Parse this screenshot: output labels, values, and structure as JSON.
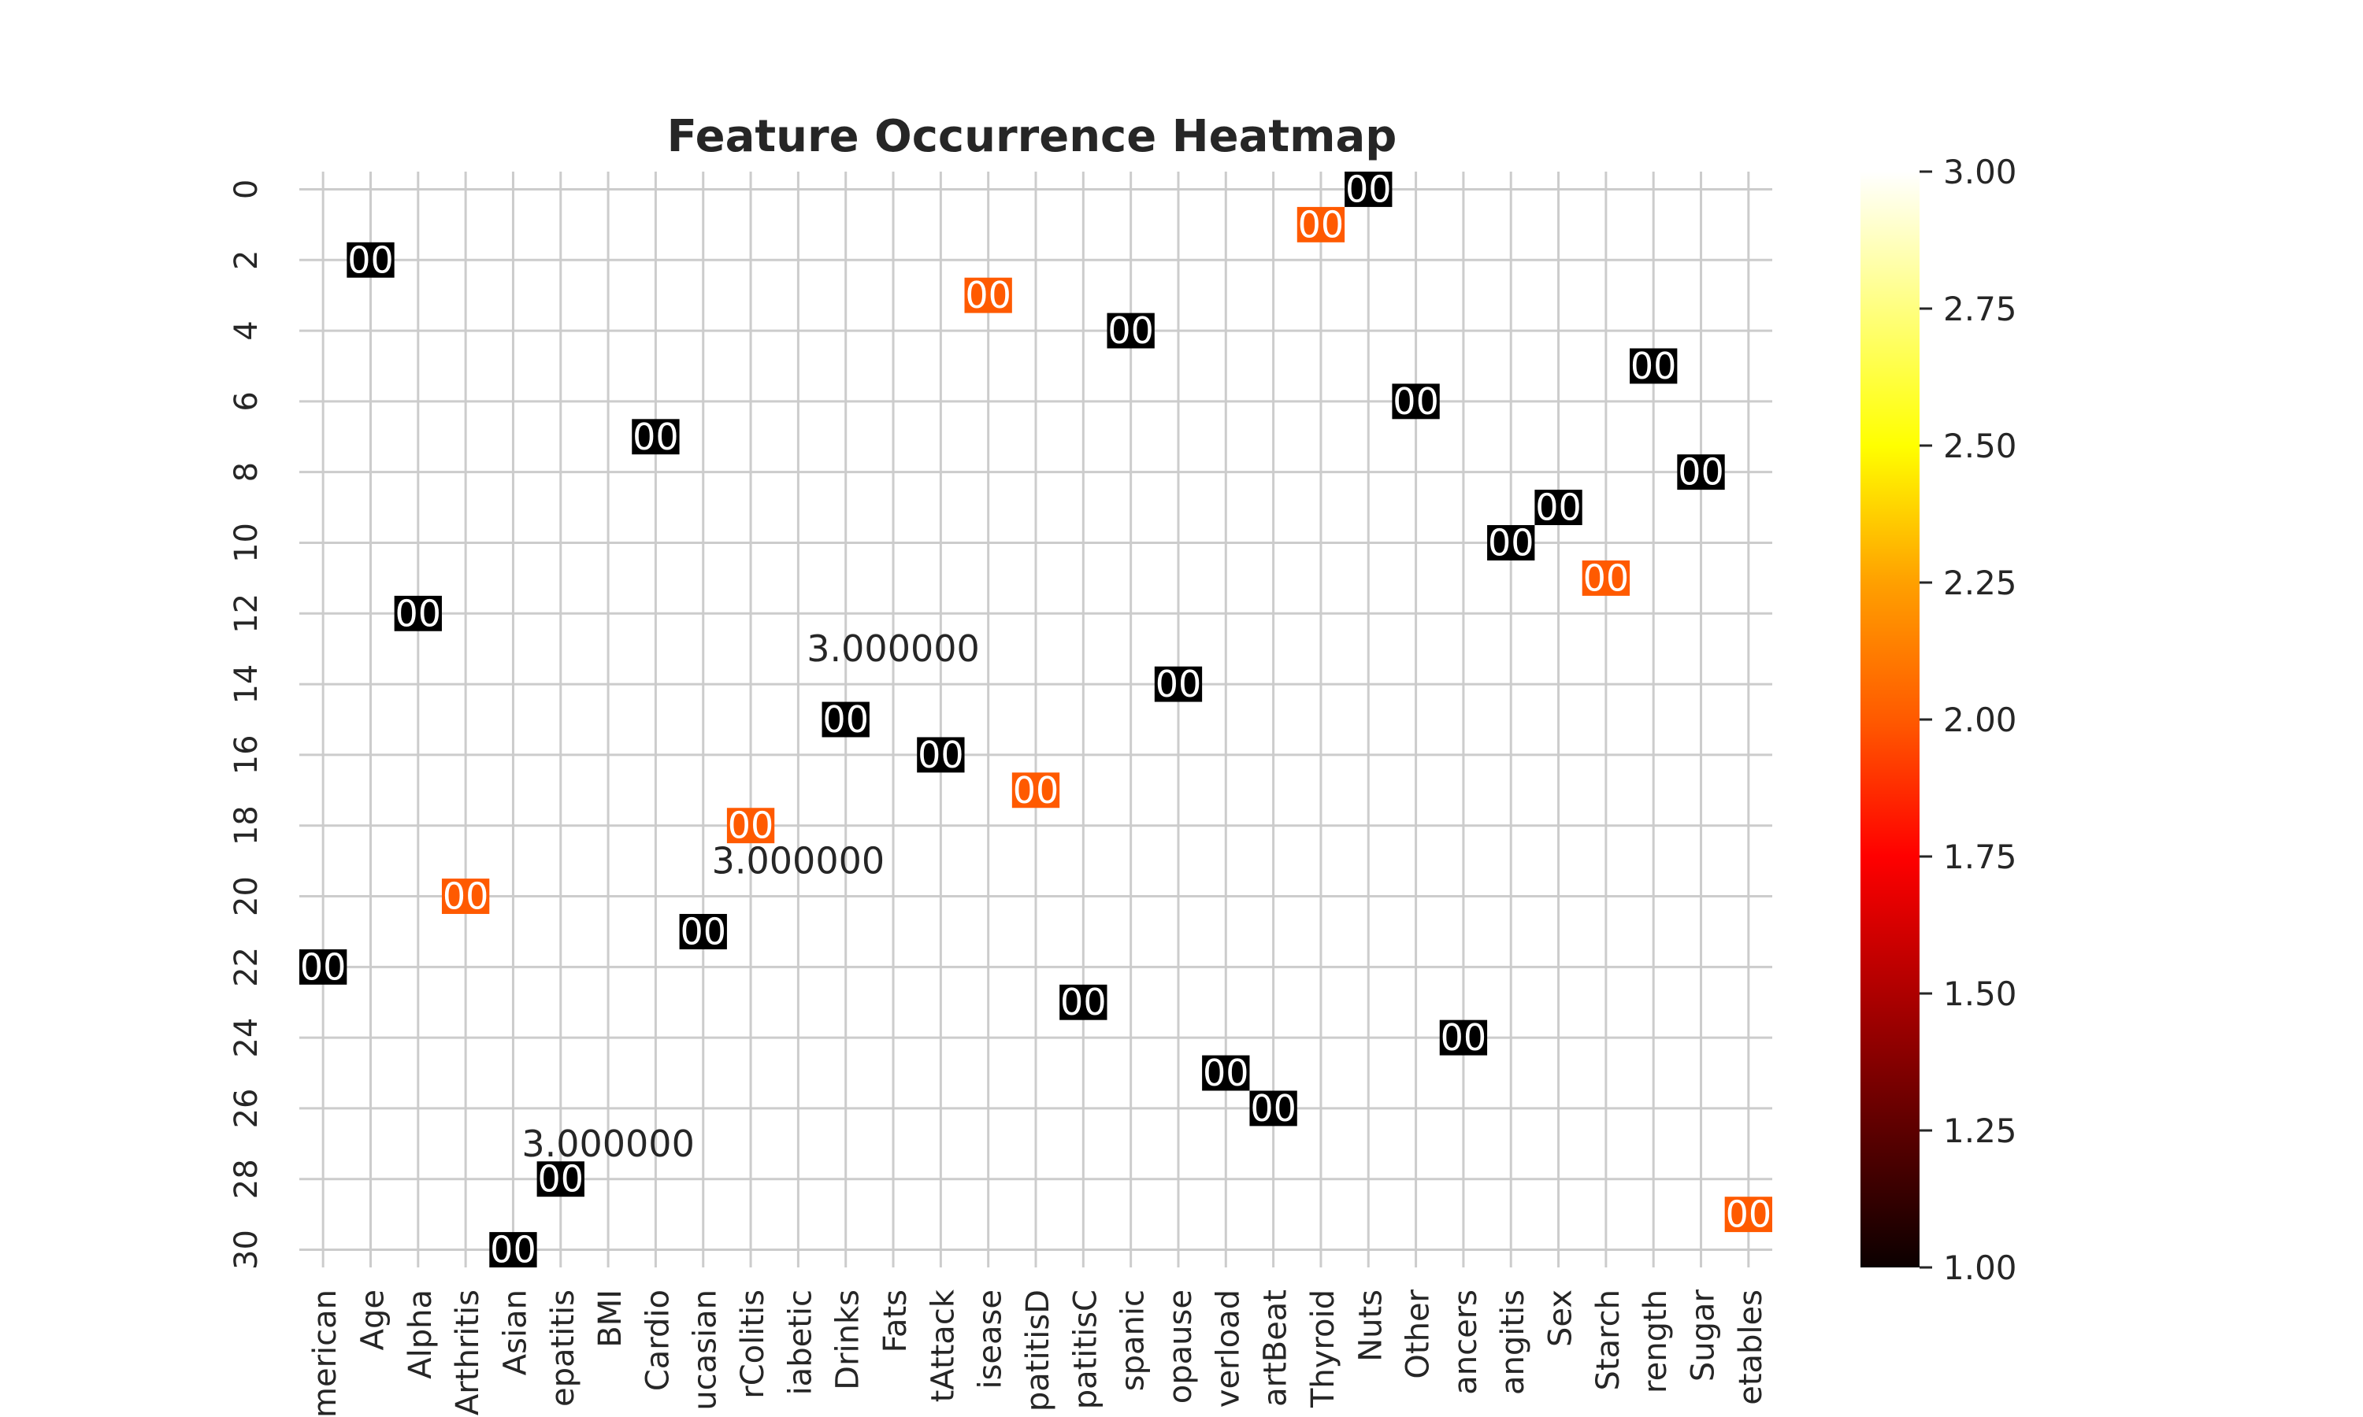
{
  "chart_data": {
    "type": "heatmap",
    "title": "Feature Occurrence Heatmap",
    "xlabel": "",
    "ylabel": "",
    "x_tick_labels": [
      "merican",
      "Age",
      "Alpha",
      "Arthritis",
      "Asian",
      "epatitis",
      "BMI",
      "Cardio",
      "ucasian",
      "rColitis",
      "iabetic",
      "Drinks",
      "Fats",
      "tAttack",
      "isease",
      "patitisD",
      "patitisC",
      "spanic",
      "opause",
      "verload",
      "artBeat",
      "Thyroid",
      "Nuts",
      "Other",
      "ancers",
      "angitis",
      "Sex",
      "Starch",
      "rength",
      "Sugar",
      "etables"
    ],
    "y_tick_labels": [
      "0",
      "2",
      "4",
      "6",
      "8",
      "10",
      "12",
      "14",
      "16",
      "18",
      "20",
      "22",
      "24",
      "26",
      "28",
      "30"
    ],
    "y_tick_rows": [
      0,
      2,
      4,
      6,
      8,
      10,
      12,
      14,
      16,
      18,
      20,
      22,
      24,
      26,
      28,
      30
    ],
    "grid": true,
    "colormap": "hot",
    "colorbar": {
      "min": 1.0,
      "max": 3.0,
      "ticks": [
        "1.00",
        "1.25",
        "1.50",
        "1.75",
        "2.00",
        "2.25",
        "2.50",
        "2.75",
        "3.00"
      ]
    },
    "colors": {
      "value_1": "#000000",
      "value_2": "#ff5a00",
      "grid": "#cccccc",
      "text": "#262626"
    },
    "cell_label": "00",
    "cells": [
      {
        "row": 0,
        "col": 22,
        "value": 1
      },
      {
        "row": 1,
        "col": 21,
        "value": 2
      },
      {
        "row": 2,
        "col": 1,
        "value": 1
      },
      {
        "row": 3,
        "col": 14,
        "value": 2
      },
      {
        "row": 4,
        "col": 17,
        "value": 1
      },
      {
        "row": 5,
        "col": 28,
        "value": 1
      },
      {
        "row": 6,
        "col": 23,
        "value": 1
      },
      {
        "row": 7,
        "col": 7,
        "value": 1
      },
      {
        "row": 8,
        "col": 29,
        "value": 1
      },
      {
        "row": 9,
        "col": 26,
        "value": 1
      },
      {
        "row": 10,
        "col": 25,
        "value": 1
      },
      {
        "row": 11,
        "col": 27,
        "value": 2
      },
      {
        "row": 12,
        "col": 2,
        "value": 1
      },
      {
        "row": 14,
        "col": 18,
        "value": 1
      },
      {
        "row": 15,
        "col": 11,
        "value": 1
      },
      {
        "row": 16,
        "col": 13,
        "value": 1
      },
      {
        "row": 17,
        "col": 15,
        "value": 2
      },
      {
        "row": 18,
        "col": 9,
        "value": 2
      },
      {
        "row": 20,
        "col": 3,
        "value": 2
      },
      {
        "row": 21,
        "col": 8,
        "value": 1
      },
      {
        "row": 22,
        "col": 0,
        "value": 1
      },
      {
        "row": 23,
        "col": 16,
        "value": 1
      },
      {
        "row": 24,
        "col": 24,
        "value": 1
      },
      {
        "row": 25,
        "col": 19,
        "value": 1
      },
      {
        "row": 26,
        "col": 20,
        "value": 1
      },
      {
        "row": 28,
        "col": 5,
        "value": 1
      },
      {
        "row": 29,
        "col": 30,
        "value": 2
      },
      {
        "row": 30,
        "col": 4,
        "value": 1
      }
    ],
    "annotations": [
      {
        "text": "3.000000",
        "row": 13,
        "col": 12
      },
      {
        "text": "3.000000",
        "row": 19,
        "col": 10
      },
      {
        "text": "3.000000",
        "row": 27,
        "col": 6
      }
    ]
  }
}
